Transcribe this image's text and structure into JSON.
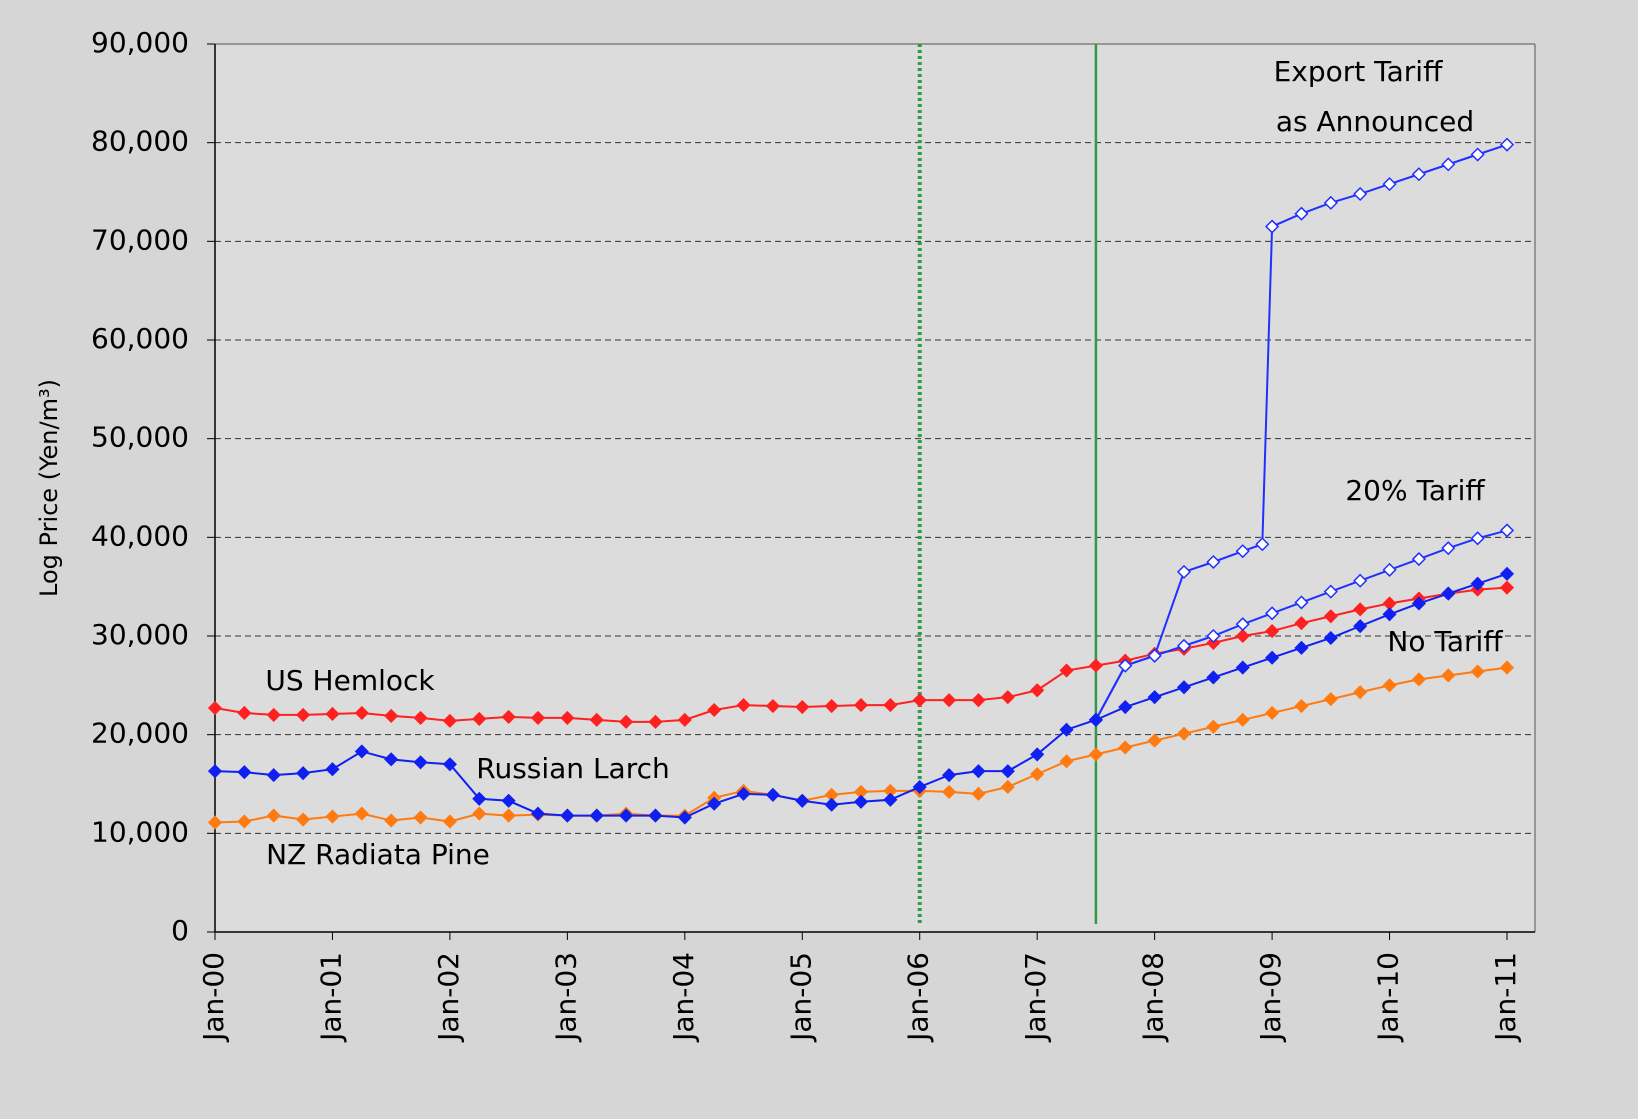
{
  "chart_data": {
    "type": "line",
    "y_label": "Log Price (Yen/m³)",
    "ylim": [
      0,
      90000
    ],
    "yticks": [
      0,
      {
        "value": 10000,
        "label": "10,000"
      },
      {
        "value": 20000,
        "label": "20,000"
      },
      {
        "value": 30000,
        "label": "30,000"
      },
      {
        "value": 40000,
        "label": "40,000"
      },
      {
        "value": 50000,
        "label": "50,000"
      },
      {
        "value": 60000,
        "label": "60,000"
      },
      {
        "value": 70000,
        "label": "70,000"
      },
      {
        "value": 80000,
        "label": "80,000"
      },
      {
        "value": 90000,
        "label": "90,000"
      }
    ],
    "xlim": [
      0,
      132
    ],
    "xticks": [
      {
        "value": 0,
        "label": "Jan-00"
      },
      {
        "value": 12,
        "label": "Jan-01"
      },
      {
        "value": 24,
        "label": "Jan-02"
      },
      {
        "value": 36,
        "label": "Jan-03"
      },
      {
        "value": 48,
        "label": "Jan-04"
      },
      {
        "value": 60,
        "label": "Jan-05"
      },
      {
        "value": 72,
        "label": "Jan-06"
      },
      {
        "value": 84,
        "label": "Jan-07"
      },
      {
        "value": 96,
        "label": "Jan-08"
      },
      {
        "value": 108,
        "label": "Jan-09"
      },
      {
        "value": 120,
        "label": "Jan-10"
      },
      {
        "value": 132,
        "label": "Jan-11"
      }
    ],
    "grid": true,
    "vlines": [
      {
        "x": 72,
        "color": "#2e9a4a",
        "dash": "dotted"
      },
      {
        "x": 90,
        "color": "#2e9a4a",
        "dash": "solid"
      }
    ],
    "series": [
      {
        "name": "US Hemlock",
        "color": "#ff2020",
        "filled": true,
        "x": [
          0,
          3,
          6,
          9,
          12,
          15,
          18,
          21,
          24,
          27,
          30,
          33,
          36,
          39,
          42,
          45,
          48,
          51,
          54,
          57,
          60,
          63,
          66,
          69,
          72,
          75,
          78,
          81,
          84,
          87,
          90,
          93,
          96,
          99,
          102,
          105,
          108,
          111,
          114,
          117,
          120,
          123,
          126,
          129,
          132
        ],
        "values": [
          22700,
          22200,
          22000,
          22000,
          22100,
          22200,
          21900,
          21700,
          21400,
          21600,
          21800,
          21700,
          21700,
          21500,
          21300,
          21300,
          21500,
          22500,
          23000,
          22900,
          22800,
          22900,
          23000,
          23000,
          23500,
          23500,
          23500,
          23800,
          24500,
          26500,
          27000,
          27500,
          28200,
          28700,
          29300,
          30000,
          30500,
          31300,
          32000,
          32700,
          33300,
          33800,
          34300,
          34700,
          34900
        ]
      },
      {
        "name": "NZ Radiata Pine",
        "color": "#ff7a10",
        "filled": true,
        "x": [
          0,
          3,
          6,
          9,
          12,
          15,
          18,
          21,
          24,
          27,
          30,
          33,
          36,
          39,
          42,
          45,
          48,
          51,
          54,
          57,
          60,
          63,
          66,
          69,
          72,
          75,
          78,
          81,
          84,
          87,
          90,
          93,
          96,
          99,
          102,
          105,
          108,
          111,
          114,
          117,
          120,
          123,
          126,
          129,
          132
        ],
        "values": [
          11100,
          11200,
          11800,
          11400,
          11700,
          12000,
          11300,
          11600,
          11200,
          12000,
          11800,
          11900,
          11800,
          11800,
          12000,
          11800,
          11800,
          13600,
          14300,
          13900,
          13300,
          13900,
          14200,
          14300,
          14300,
          14200,
          14000,
          14700,
          16000,
          17300,
          18000,
          18700,
          19400,
          20100,
          20800,
          21500,
          22200,
          22900,
          23600,
          24300,
          25000,
          25600,
          26000,
          26400,
          26800
        ]
      },
      {
        "name": "20% Tariff",
        "color": "#2030ff",
        "filled": false,
        "x": [
          90,
          93,
          96,
          99,
          102,
          105,
          108,
          111,
          114,
          117,
          120,
          123,
          126,
          129,
          132
        ],
        "values": [
          21500,
          27000,
          28000,
          29000,
          30000,
          31200,
          32300,
          33400,
          34500,
          35600,
          36700,
          37800,
          38900,
          39900,
          40700
        ]
      },
      {
        "color": "#2030ff",
        "filled": false,
        "x": [
          90,
          93,
          96,
          99,
          102,
          105,
          107,
          108,
          111,
          114,
          117,
          120,
          123,
          126,
          129,
          132
        ],
        "values": [
          21500,
          27000,
          28000,
          36500,
          37500,
          38600,
          39300,
          71500,
          72800,
          73900,
          74800,
          75800,
          76800,
          77800,
          78800,
          79800
        ]
      },
      {
        "name": "Russian Larch",
        "color": "#1020f0",
        "filled": true,
        "x": [
          0,
          3,
          6,
          9,
          12,
          15,
          18,
          21,
          24,
          27,
          30,
          33,
          36,
          39,
          42,
          45,
          48,
          51,
          54,
          57,
          60,
          63,
          66,
          69,
          72,
          75,
          78,
          81,
          84,
          87,
          90,
          93,
          96,
          99,
          102,
          105,
          108,
          111,
          114,
          117,
          120,
          123,
          126,
          129,
          132
        ],
        "values": [
          16300,
          16200,
          15900,
          16100,
          16500,
          18300,
          17500,
          17200,
          17000,
          13500,
          13300,
          12000,
          11800,
          11800,
          11800,
          11800,
          11600,
          13000,
          14000,
          13900,
          13300,
          12900,
          13200,
          13400,
          14700,
          15900,
          16300,
          16300,
          18000,
          20500,
          21500,
          22800,
          23800,
          24800,
          25800,
          26800,
          27800,
          28800,
          29800,
          31000,
          32200,
          33300,
          34300,
          35300,
          36300
        ]
      }
    ],
    "annotations": [
      "Export Tariff",
      "as Announced",
      "No Tariff"
    ]
  }
}
